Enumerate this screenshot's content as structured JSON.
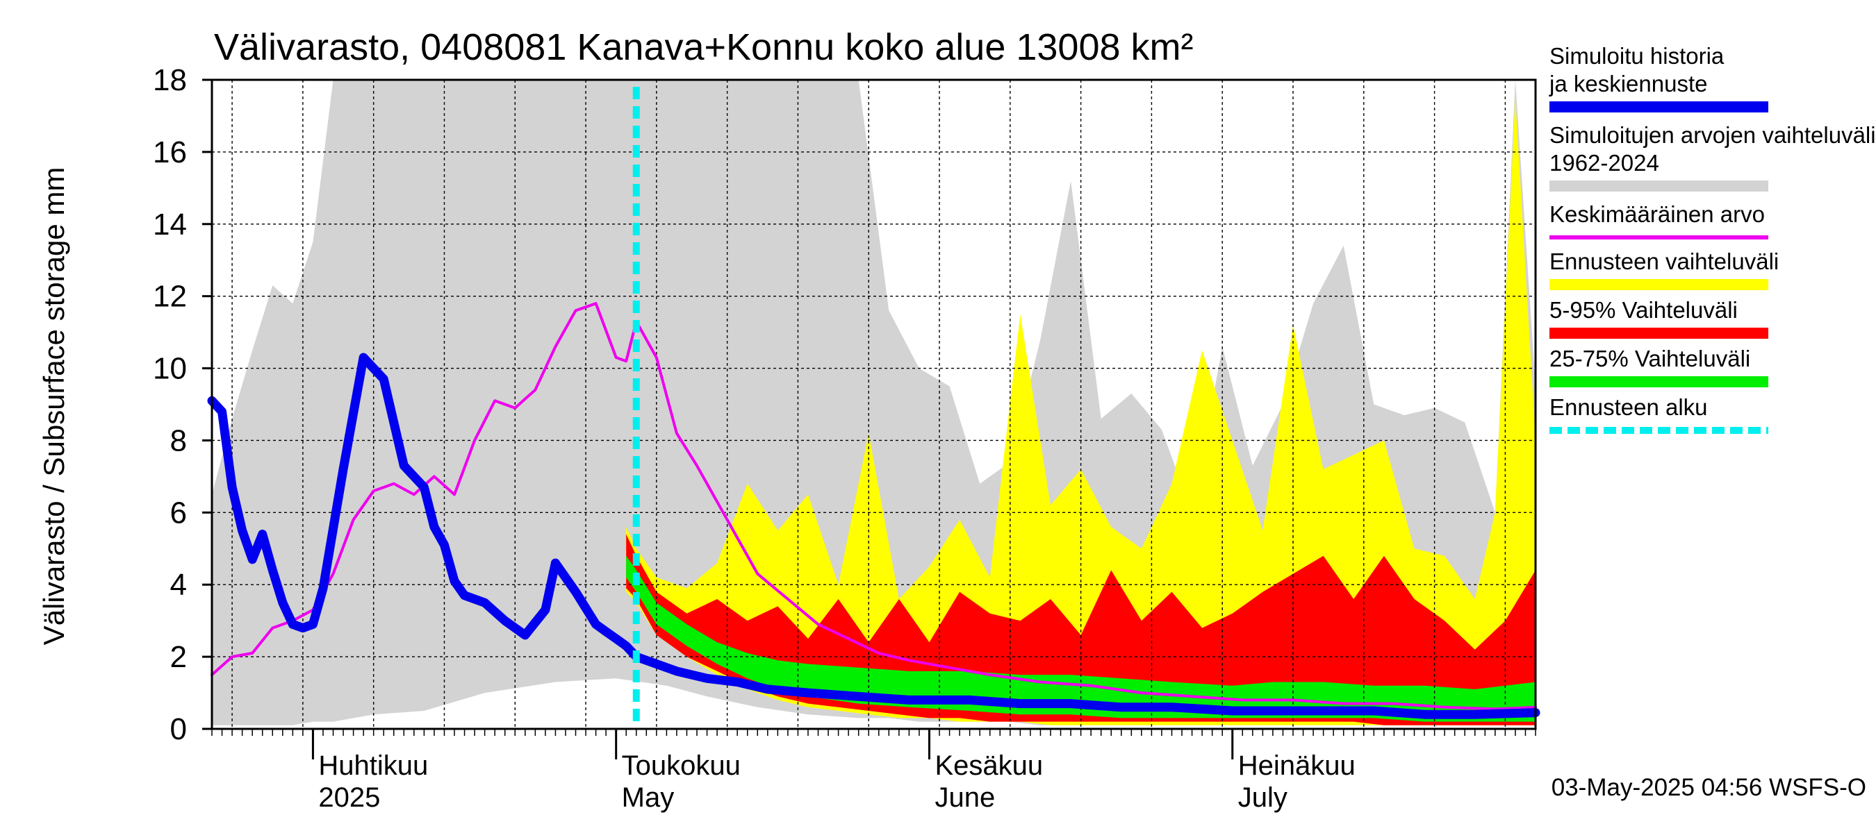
{
  "chart_data": {
    "type": "area",
    "title": "Välivarasto, 0408081 Kanava+Konnu koko alue 13008 km²",
    "ylabel": "Välivarasto / Subsurface storage  mm",
    "ylim": [
      0,
      18
    ],
    "yticks": [
      "0",
      "2",
      "4",
      "6",
      "8",
      "10",
      "12",
      "14",
      "16",
      "18"
    ],
    "xlim": [
      "2025-03-22",
      "2025-07-31"
    ],
    "grid": true,
    "month_labels": [
      {
        "fi": "Huhtikuu",
        "en": "2025",
        "date": "2025-04-01"
      },
      {
        "fi": "Toukokuu",
        "en": "May",
        "date": "2025-05-01"
      },
      {
        "fi": "Kesäkuu",
        "en": "June",
        "date": "2025-06-01"
      },
      {
        "fi": "Heinäkuu",
        "en": "July",
        "date": "2025-07-01"
      }
    ],
    "forecast_start": "2025-05-03",
    "footer": "03-May-2025 04:56 WSFS-O",
    "legend_position": "right",
    "legend": [
      {
        "label": "Simuloitu historia ja keskiennuste",
        "color": "#0000ee",
        "kind": "thick-line"
      },
      {
        "label": "Simuloitujen arvojen vaihteluväli 1962-2024",
        "color": "#d3d3d3",
        "kind": "band"
      },
      {
        "label": "Keskimääräinen arvo",
        "color": "#ee00ee",
        "kind": "line"
      },
      {
        "label": "Ennusteen vaihteluväli",
        "color": "#ffff00",
        "kind": "band"
      },
      {
        "label": "5-95% Vaihteluväli",
        "color": "#ff0000",
        "kind": "band"
      },
      {
        "label": "25-75% Vaihteluväli",
        "color": "#00ee00",
        "kind": "band"
      },
      {
        "label": "Ennusteen alku",
        "color": "#00eeee",
        "kind": "dashed-line"
      }
    ],
    "series": [
      {
        "name": "Simuloitu historia ja keskiennuste",
        "color": "#0000ee",
        "x": [
          "2025-03-22",
          "2025-03-23",
          "2025-03-24",
          "2025-03-25",
          "2025-03-26",
          "2025-03-27",
          "2025-03-28",
          "2025-03-29",
          "2025-03-30",
          "2025-03-31",
          "2025-04-01",
          "2025-04-02",
          "2025-04-04",
          "2025-04-06",
          "2025-04-08",
          "2025-04-10",
          "2025-04-12",
          "2025-04-13",
          "2025-04-14",
          "2025-04-15",
          "2025-04-16",
          "2025-04-18",
          "2025-04-20",
          "2025-04-22",
          "2025-04-24",
          "2025-04-25",
          "2025-04-27",
          "2025-04-29",
          "2025-04-30",
          "2025-05-01",
          "2025-05-02",
          "2025-05-03",
          "2025-05-05",
          "2025-05-07",
          "2025-05-10",
          "2025-05-13",
          "2025-05-16",
          "2025-05-20",
          "2025-05-25",
          "2025-05-30",
          "2025-06-05",
          "2025-06-10",
          "2025-06-15",
          "2025-06-20",
          "2025-06-25",
          "2025-07-01",
          "2025-07-05",
          "2025-07-10",
          "2025-07-15",
          "2025-07-20",
          "2025-07-25",
          "2025-07-31"
        ],
        "y": [
          9.1,
          8.8,
          6.7,
          5.5,
          4.7,
          5.4,
          4.4,
          3.5,
          2.9,
          2.8,
          2.9,
          3.9,
          7.2,
          10.3,
          9.7,
          7.3,
          6.7,
          5.6,
          5.1,
          4.1,
          3.7,
          3.5,
          3.0,
          2.6,
          3.3,
          4.6,
          3.8,
          2.9,
          2.7,
          2.5,
          2.3,
          2.0,
          1.8,
          1.6,
          1.4,
          1.3,
          1.1,
          1.0,
          0.9,
          0.8,
          0.8,
          0.7,
          0.7,
          0.6,
          0.6,
          0.5,
          0.5,
          0.5,
          0.5,
          0.4,
          0.4,
          0.45
        ]
      },
      {
        "name": "Keskimääräinen arvo",
        "color": "#ee00ee",
        "x": [
          "2025-03-22",
          "2025-03-24",
          "2025-03-26",
          "2025-03-28",
          "2025-03-30",
          "2025-04-01",
          "2025-04-03",
          "2025-04-05",
          "2025-04-07",
          "2025-04-09",
          "2025-04-11",
          "2025-04-13",
          "2025-04-15",
          "2025-04-17",
          "2025-04-19",
          "2025-04-21",
          "2025-04-23",
          "2025-04-25",
          "2025-04-27",
          "2025-04-28",
          "2025-04-29",
          "2025-05-01",
          "2025-05-02",
          "2025-05-03",
          "2025-05-05",
          "2025-05-07",
          "2025-05-09",
          "2025-05-12",
          "2025-05-15",
          "2025-05-18",
          "2025-05-21",
          "2025-05-24",
          "2025-05-27",
          "2025-05-30",
          "2025-06-03",
          "2025-06-07",
          "2025-06-12",
          "2025-06-17",
          "2025-06-22",
          "2025-06-27",
          "2025-07-02",
          "2025-07-07",
          "2025-07-12",
          "2025-07-17",
          "2025-07-22",
          "2025-07-27",
          "2025-07-31"
        ],
        "y": [
          1.5,
          2.0,
          2.1,
          2.8,
          3.0,
          3.3,
          4.3,
          5.8,
          6.6,
          6.8,
          6.5,
          7.0,
          6.5,
          8.0,
          9.1,
          8.9,
          9.4,
          10.6,
          11.6,
          11.7,
          11.8,
          10.3,
          10.2,
          11.3,
          10.3,
          8.2,
          7.3,
          5.8,
          4.3,
          3.6,
          2.9,
          2.5,
          2.1,
          1.9,
          1.7,
          1.5,
          1.3,
          1.2,
          1.0,
          0.9,
          0.8,
          0.8,
          0.7,
          0.7,
          0.6,
          0.55,
          0.6
        ]
      }
    ],
    "bands": [
      {
        "name": "Simuloitujen arvojen vaihteluväli 1962-2024",
        "color": "#d3d3d3",
        "x": [
          "2025-03-22",
          "2025-03-24",
          "2025-03-26",
          "2025-03-28",
          "2025-03-30",
          "2025-04-01",
          "2025-04-03",
          "2025-04-07",
          "2025-04-12",
          "2025-04-18",
          "2025-04-25",
          "2025-05-01",
          "2025-05-06",
          "2025-05-10",
          "2025-05-15",
          "2025-05-20",
          "2025-05-25",
          "2025-05-28",
          "2025-05-31",
          "2025-06-03",
          "2025-06-06",
          "2025-06-09",
          "2025-06-12",
          "2025-06-15",
          "2025-06-18",
          "2025-06-21",
          "2025-06-24",
          "2025-06-27",
          "2025-06-30",
          "2025-07-03",
          "2025-07-06",
          "2025-07-09",
          "2025-07-12",
          "2025-07-15",
          "2025-07-18",
          "2025-07-21",
          "2025-07-24",
          "2025-07-27",
          "2025-07-29",
          "2025-07-31"
        ],
        "low": [
          0.1,
          0.1,
          0.1,
          0.1,
          0.1,
          0.2,
          0.2,
          0.4,
          0.5,
          1.0,
          1.3,
          1.4,
          1.2,
          0.9,
          0.6,
          0.4,
          0.3,
          0.3,
          0.2,
          0.2,
          0.2,
          0.2,
          0.1,
          0.1,
          0.1,
          0.1,
          0.1,
          0.1,
          0.1,
          0.1,
          0.1,
          0.1,
          0.1,
          0.1,
          0.1,
          0.1,
          0.1,
          0.1,
          0.1,
          0.1
        ],
        "high": [
          6.5,
          8.6,
          10.5,
          12.3,
          11.8,
          13.5,
          18.0,
          18.0,
          18.0,
          18.0,
          18.0,
          18.0,
          18.0,
          18.0,
          18.0,
          18.0,
          18.0,
          11.6,
          10.0,
          9.5,
          6.8,
          7.4,
          10.8,
          15.2,
          8.6,
          9.3,
          8.3,
          6.0,
          10.6,
          7.3,
          9.0,
          11.8,
          13.4,
          9.0,
          8.7,
          8.9,
          8.5,
          6.0,
          18.0,
          9.5
        ]
      },
      {
        "name": "Ennusteen vaihteluväli",
        "color": "#ffff00",
        "x": [
          "2025-05-02",
          "2025-05-03",
          "2025-05-05",
          "2025-05-08",
          "2025-05-11",
          "2025-05-14",
          "2025-05-17",
          "2025-05-20",
          "2025-05-23",
          "2025-05-26",
          "2025-05-29",
          "2025-06-01",
          "2025-06-04",
          "2025-06-07",
          "2025-06-10",
          "2025-06-13",
          "2025-06-16",
          "2025-06-19",
          "2025-06-22",
          "2025-06-25",
          "2025-06-28",
          "2025-07-01",
          "2025-07-04",
          "2025-07-07",
          "2025-07-10",
          "2025-07-13",
          "2025-07-16",
          "2025-07-19",
          "2025-07-22",
          "2025-07-25",
          "2025-07-27",
          "2025-07-29",
          "2025-07-31"
        ],
        "low": [
          3.8,
          3.5,
          2.6,
          2.0,
          1.5,
          1.1,
          0.8,
          0.6,
          0.5,
          0.4,
          0.3,
          0.3,
          0.2,
          0.2,
          0.2,
          0.1,
          0.1,
          0.1,
          0.1,
          0.1,
          0.1,
          0.1,
          0.1,
          0.1,
          0.1,
          0.1,
          0.1,
          0.1,
          0.1,
          0.1,
          0.1,
          0.1,
          0.1
        ],
        "high": [
          5.6,
          5.0,
          4.2,
          3.9,
          4.6,
          6.8,
          5.5,
          6.5,
          4.0,
          8.2,
          3.6,
          4.5,
          5.8,
          4.2,
          11.5,
          6.2,
          7.2,
          5.6,
          5.0,
          6.8,
          10.5,
          8.0,
          5.5,
          11.2,
          7.2,
          7.6,
          8.0,
          5.0,
          4.8,
          3.6,
          6.0,
          17.5,
          8.0
        ]
      },
      {
        "name": "5-95% Vaihteluväli",
        "color": "#ff0000",
        "x": [
          "2025-05-02",
          "2025-05-03",
          "2025-05-05",
          "2025-05-08",
          "2025-05-11",
          "2025-05-14",
          "2025-05-17",
          "2025-05-20",
          "2025-05-23",
          "2025-05-26",
          "2025-05-29",
          "2025-06-01",
          "2025-06-04",
          "2025-06-07",
          "2025-06-10",
          "2025-06-13",
          "2025-06-16",
          "2025-06-19",
          "2025-06-22",
          "2025-06-25",
          "2025-06-28",
          "2025-07-01",
          "2025-07-04",
          "2025-07-07",
          "2025-07-10",
          "2025-07-13",
          "2025-07-16",
          "2025-07-19",
          "2025-07-22",
          "2025-07-25",
          "2025-07-28",
          "2025-07-31"
        ],
        "low": [
          3.9,
          3.6,
          2.6,
          2.0,
          1.6,
          1.2,
          0.9,
          0.7,
          0.6,
          0.5,
          0.4,
          0.3,
          0.3,
          0.2,
          0.2,
          0.2,
          0.2,
          0.2,
          0.2,
          0.2,
          0.2,
          0.2,
          0.2,
          0.2,
          0.2,
          0.2,
          0.1,
          0.1,
          0.1,
          0.1,
          0.1,
          0.1
        ],
        "high": [
          5.4,
          4.8,
          3.8,
          3.2,
          3.6,
          3.0,
          3.4,
          2.5,
          3.6,
          2.4,
          3.6,
          2.4,
          3.8,
          3.2,
          3.0,
          3.6,
          2.6,
          4.4,
          3.0,
          3.8,
          2.8,
          3.2,
          3.8,
          4.3,
          4.8,
          3.6,
          4.8,
          3.6,
          3.0,
          2.2,
          3.0,
          4.4
        ]
      },
      {
        "name": "25-75% Vaihteluväli",
        "color": "#00ee00",
        "x": [
          "2025-05-02",
          "2025-05-03",
          "2025-05-05",
          "2025-05-08",
          "2025-05-11",
          "2025-05-14",
          "2025-05-17",
          "2025-05-20",
          "2025-05-25",
          "2025-05-30",
          "2025-06-05",
          "2025-06-10",
          "2025-06-15",
          "2025-06-20",
          "2025-06-25",
          "2025-07-01",
          "2025-07-05",
          "2025-07-10",
          "2025-07-15",
          "2025-07-20",
          "2025-07-25",
          "2025-07-31"
        ],
        "low": [
          4.2,
          3.8,
          2.9,
          2.3,
          1.8,
          1.4,
          1.1,
          0.9,
          0.7,
          0.6,
          0.5,
          0.4,
          0.4,
          0.3,
          0.3,
          0.3,
          0.3,
          0.3,
          0.3,
          0.2,
          0.2,
          0.2
        ],
        "high": [
          4.8,
          4.4,
          3.5,
          2.9,
          2.4,
          2.1,
          1.9,
          1.8,
          1.7,
          1.6,
          1.6,
          1.5,
          1.5,
          1.4,
          1.3,
          1.2,
          1.3,
          1.3,
          1.2,
          1.2,
          1.1,
          1.3
        ]
      }
    ]
  }
}
